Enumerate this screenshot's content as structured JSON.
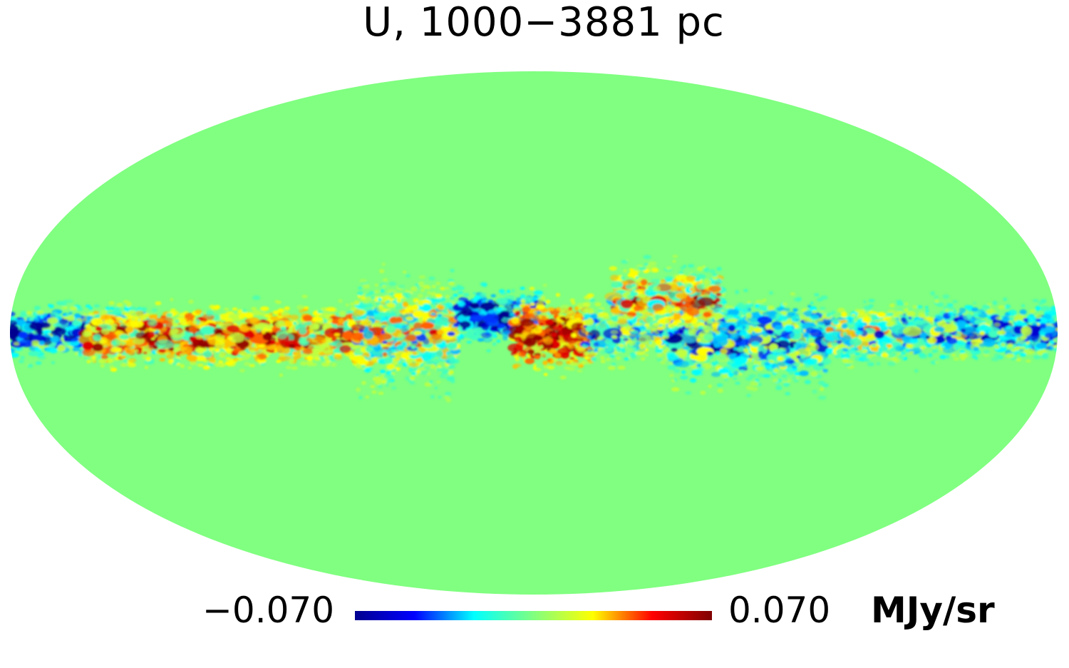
{
  "title": "U, 1000−3881 pc",
  "colorbar": {
    "min_label": "−0.070",
    "max_label": "0.070",
    "unit": "MJy/sr",
    "min": -0.07,
    "max": 0.07,
    "stops": [
      "#00008f",
      "#0000ff",
      "#00ffff",
      "#80ff80",
      "#ffff00",
      "#ff0000",
      "#800000"
    ]
  },
  "map": {
    "projection": "mollweide",
    "background_value": 0.0,
    "background_color": "#80ff80"
  }
}
